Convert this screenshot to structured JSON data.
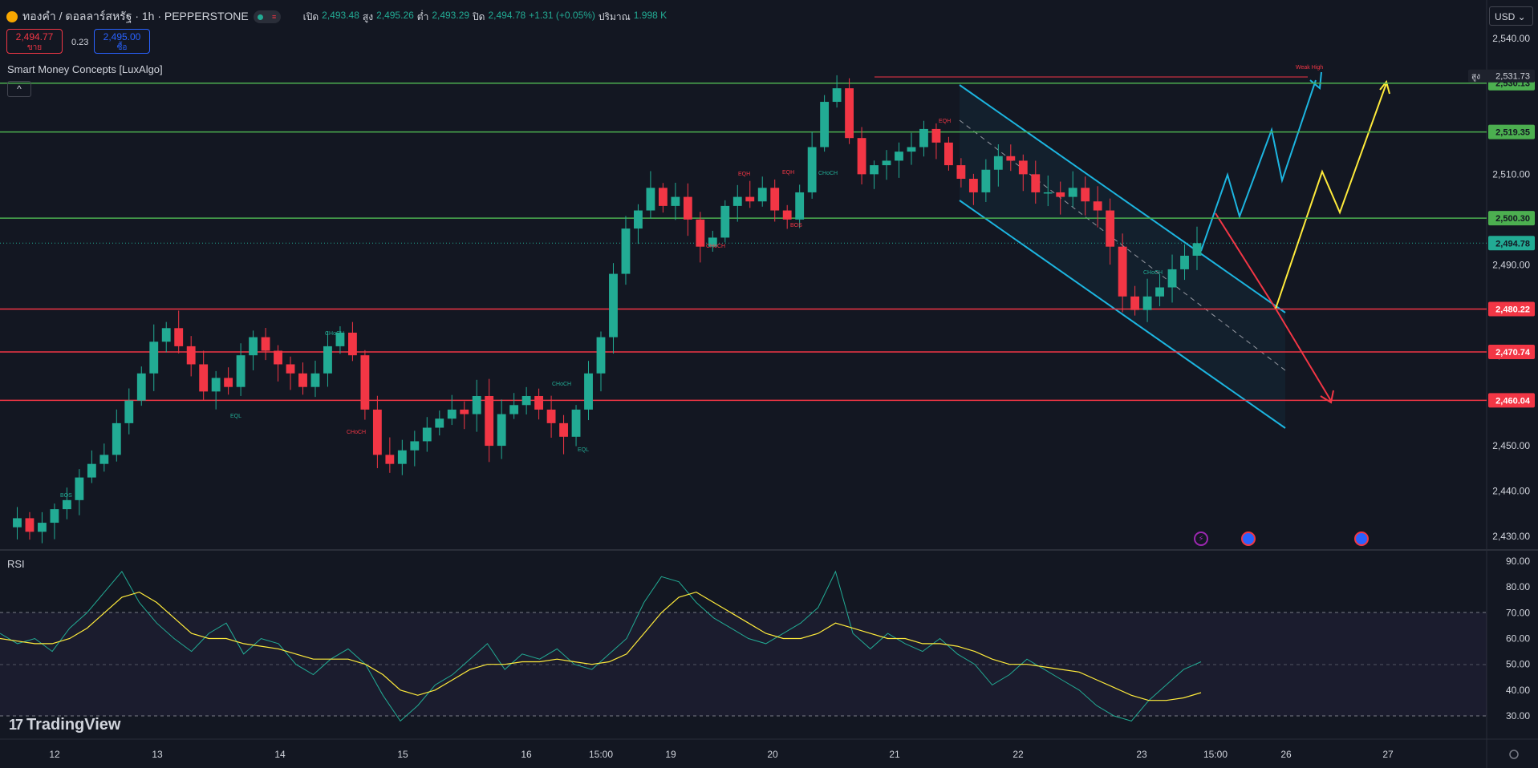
{
  "header": {
    "symbol": "ทองคำ / ดอลลาร์สหรัฐ · 1h · PEPPERSTONE",
    "open_label": "เปิด",
    "open": "2,493.48",
    "high_label": "สูง",
    "high": "2,495.26",
    "low_label": "ต่ำ",
    "low": "2,493.29",
    "close_label": "ปิด",
    "close": "2,494.78",
    "change": "+1.31 (+0.05%)",
    "volume_label": "ปริมาณ",
    "volume": "1.998 K"
  },
  "trade": {
    "sell_price": "2,494.77",
    "sell_label": "ขาย",
    "spread": "0.23",
    "buy_price": "2,495.00",
    "buy_label": "ซื้อ"
  },
  "indicator_name": "Smart Money Concepts [LuxAlgo]",
  "collapse_icon": "chevron-up-icon",
  "rsi_name": "RSI",
  "currency": "USD",
  "brand": "TradingView",
  "colors": {
    "up": "#22ab94",
    "down": "#f23645",
    "resistance": "#4caf50",
    "support": "#f23645",
    "channel": "#1cb5e0",
    "projection_up": "#ffeb3b",
    "projection_down": "#f23645"
  },
  "chart_data": [
    {
      "type": "candlestick",
      "title": "ทองคำ / ดอลลาร์สหรัฐ · 1h · PEPPERSTONE",
      "ylim": [
        2428,
        2543
      ],
      "y_ticks": [
        2430,
        2440,
        2450,
        2460,
        2470,
        2480,
        2490,
        2500,
        2510,
        2520,
        2530,
        2540
      ],
      "x_ticks": [
        "12",
        "13",
        "14",
        "15",
        "16",
        "15:00",
        "19",
        "20",
        "21",
        "22",
        "23",
        "15:00",
        "26",
        "27"
      ],
      "horizontal_levels": [
        {
          "value": 2530.13,
          "label": "2,530.13",
          "color": "#4caf50"
        },
        {
          "value": 2519.35,
          "label": "2,519.35",
          "color": "#4caf50"
        },
        {
          "value": 2500.3,
          "label": "2,500.30",
          "color": "#4caf50"
        },
        {
          "value": 2480.22,
          "label": "2,480.22",
          "color": "#f23645"
        },
        {
          "value": 2470.74,
          "label": "2,470.74",
          "color": "#f23645"
        },
        {
          "value": 2460.04,
          "label": "2,460.04",
          "color": "#f23645"
        }
      ],
      "last_price": {
        "value": 2494.78,
        "label": "2,494.78"
      },
      "high_marker": {
        "value": 2531.73,
        "label": "2,531.73",
        "tag": "สูง"
      },
      "annotations": [
        "BOS",
        "CHoCH",
        "EQL",
        "EQH",
        "Weak High"
      ],
      "close_path": [
        2432,
        2434,
        2431,
        2433,
        2436,
        2438,
        2443,
        2446,
        2448,
        2455,
        2460,
        2466,
        2473,
        2476,
        2472,
        2468,
        2462,
        2465,
        2463,
        2470,
        2474,
        2471,
        2468,
        2466,
        2463,
        2466,
        2472,
        2475,
        2470,
        2458,
        2448,
        2446,
        2449,
        2451,
        2454,
        2456,
        2458,
        2457,
        2461,
        2450,
        2457,
        2459,
        2461,
        2458,
        2455,
        2452,
        2458,
        2466,
        2474,
        2488,
        2498,
        2502,
        2507,
        2503,
        2505,
        2500,
        2494,
        2496,
        2503,
        2505,
        2504,
        2507,
        2502,
        2500,
        2506,
        2516,
        2526,
        2529,
        2518,
        2510,
        2512,
        2513,
        2515,
        2516,
        2520,
        2517,
        2512,
        2509,
        2506,
        2511,
        2514,
        2513,
        2510,
        2506,
        2506,
        2505,
        2507,
        2504,
        2502,
        2494,
        2483,
        2480,
        2483,
        2485,
        2489,
        2492,
        2494.78
      ]
    },
    {
      "type": "line",
      "title": "RSI",
      "ylim": [
        25,
        92
      ],
      "y_ticks": [
        30,
        40,
        50,
        60,
        70,
        80,
        90
      ],
      "band": [
        30,
        70
      ],
      "series": [
        {
          "values": [
            62,
            58,
            60,
            55,
            64,
            70,
            78,
            86,
            74,
            66,
            60,
            55,
            62,
            66,
            54,
            60,
            58,
            50,
            46,
            52,
            56,
            50,
            38,
            28,
            34,
            42,
            46,
            52,
            58,
            48,
            54,
            52,
            56,
            50,
            48,
            54,
            60,
            74,
            84,
            82,
            74,
            68,
            64,
            60,
            58,
            62,
            66,
            72,
            86,
            62,
            56,
            62,
            58,
            55,
            60,
            54,
            50,
            42,
            46,
            52,
            48,
            44,
            40,
            34,
            30,
            28,
            36,
            42,
            48,
            51
          ]
        },
        {
          "values": [
            60,
            59,
            58,
            58,
            60,
            64,
            70,
            76,
            78,
            74,
            68,
            62,
            60,
            60,
            58,
            57,
            56,
            54,
            52,
            52,
            52,
            50,
            46,
            40,
            38,
            40,
            44,
            48,
            50,
            50,
            51,
            51,
            52,
            51,
            50,
            51,
            54,
            62,
            70,
            76,
            78,
            74,
            70,
            66,
            62,
            60,
            60,
            62,
            66,
            64,
            62,
            60,
            60,
            58,
            58,
            57,
            55,
            52,
            50,
            50,
            49,
            48,
            47,
            44,
            41,
            38,
            36,
            36,
            37,
            39
          ]
        }
      ]
    }
  ]
}
